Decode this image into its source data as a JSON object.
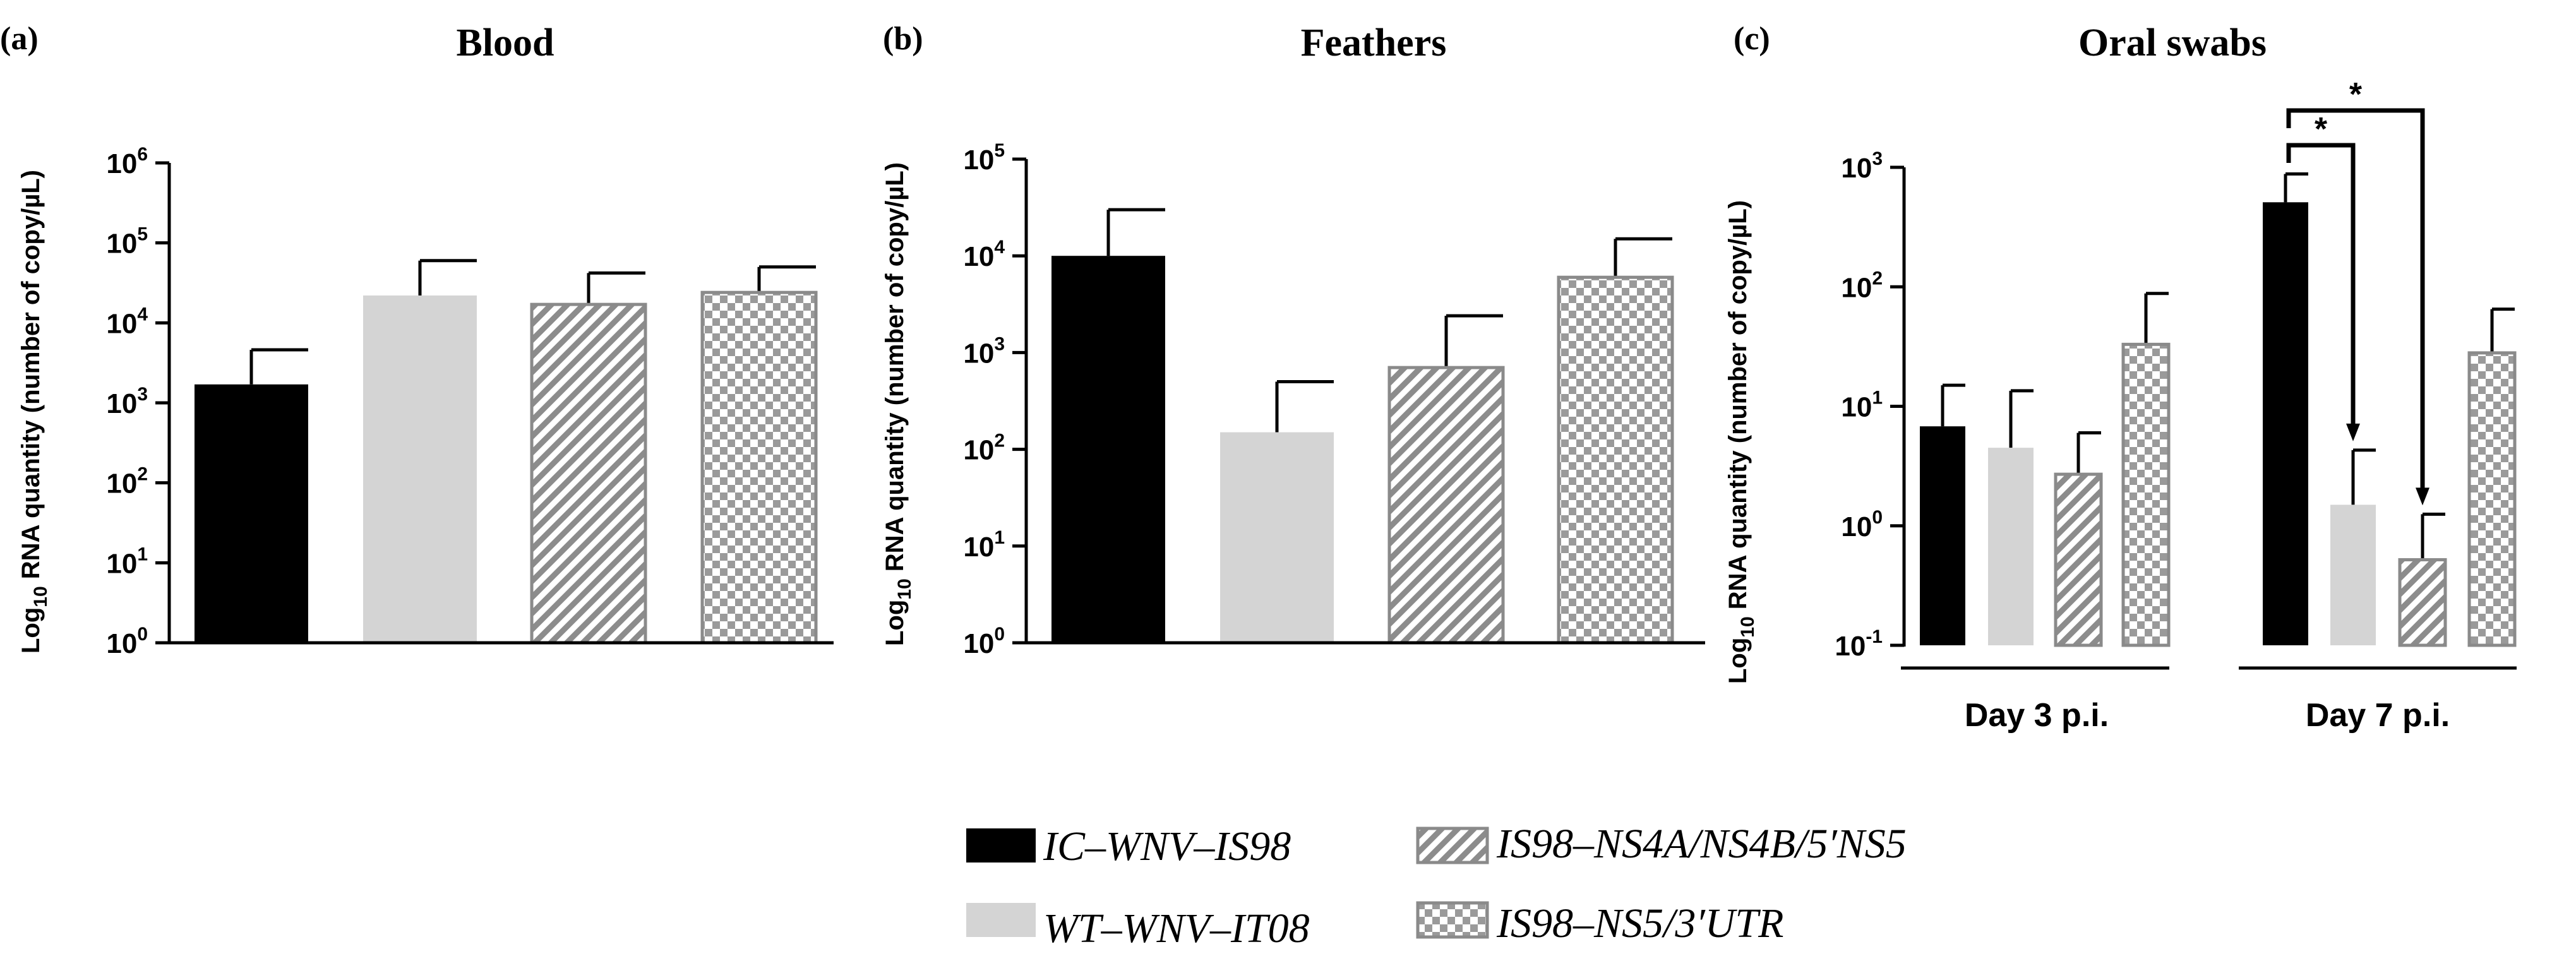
{
  "series_styles": [
    {
      "name": "IC–WNV–IS98",
      "fill": "solid",
      "color": "#000000",
      "stroke": "#000000"
    },
    {
      "name": "WT–WNV–IT08",
      "fill": "solid",
      "color": "#d4d4d4",
      "stroke": "#d4d4d4"
    },
    {
      "name": "IS98–NS4A/NS4B/5′NS5",
      "fill": "hatch",
      "color": "#9a9a9a",
      "stroke": "#8a8a8a"
    },
    {
      "name": "IS98–NS5/3′UTR",
      "fill": "checker",
      "color": "#9a9a9a",
      "stroke": "#8a8a8a"
    }
  ],
  "legend": {
    "items": [
      {
        "label": "IC–WNV–IS98",
        "series": 0
      },
      {
        "label": "WT–WNV–IT08",
        "series": 1
      },
      {
        "label": "IS98–NS4A/NS4B/5′NS5",
        "series": 2
      },
      {
        "label": "IS98–NS5/3′UTR",
        "series": 3
      }
    ]
  },
  "chart_data": [
    {
      "panel": "(a)",
      "type": "bar",
      "title": "Blood",
      "ylabel_main": "Log",
      "ylabel_sub": "10",
      "ylabel_rest": " RNA quantity (number of copy/µL)",
      "yscale": "log",
      "ylim_exp": [
        0,
        6
      ],
      "yticks": [
        "10^0",
        "10^1",
        "10^2",
        "10^3",
        "10^4",
        "10^5",
        "10^6"
      ],
      "groups": [
        {
          "label": "",
          "bars": [
            {
              "series": 0,
              "value": 1700,
              "error": 4600
            },
            {
              "series": 1,
              "value": 22000,
              "error": 60000
            },
            {
              "series": 2,
              "value": 17000,
              "error": 42000
            },
            {
              "series": 3,
              "value": 24000,
              "error": 50000
            }
          ]
        }
      ]
    },
    {
      "panel": "(b)",
      "type": "bar",
      "title": "Feathers",
      "ylabel_main": "Log",
      "ylabel_sub": "10",
      "ylabel_rest": " RNA quantity (number of copy/µL)",
      "yscale": "log",
      "ylim_exp": [
        0,
        5
      ],
      "yticks": [
        "10^0",
        "10^1",
        "10^2",
        "10^3",
        "10^4",
        "10^5"
      ],
      "groups": [
        {
          "label": "",
          "bars": [
            {
              "series": 0,
              "value": 10000,
              "error": 30000
            },
            {
              "series": 1,
              "value": 150,
              "error": 500
            },
            {
              "series": 2,
              "value": 700,
              "error": 2400
            },
            {
              "series": 3,
              "value": 6000,
              "error": 15000
            }
          ]
        }
      ]
    },
    {
      "panel": "(c)",
      "type": "bar",
      "title": "Oral swabs",
      "ylabel_main": "Log",
      "ylabel_sub": "10",
      "ylabel_rest": " RNA quantity (number of copy/µL)",
      "yscale": "log",
      "ylim_exp": [
        -1,
        3
      ],
      "yticks": [
        "10^-1",
        "10^0",
        "10^1",
        "10^2",
        "10^3"
      ],
      "groups": [
        {
          "label": "Day 3 p.i.",
          "bars": [
            {
              "series": 0,
              "value": 6.8,
              "error": 15
            },
            {
              "series": 1,
              "value": 4.5,
              "error": 13.5
            },
            {
              "series": 2,
              "value": 2.7,
              "error": 6
            },
            {
              "series": 3,
              "value": 33,
              "error": 88
            }
          ]
        },
        {
          "label": "Day 7 p.i.",
          "bars": [
            {
              "series": 0,
              "value": 510,
              "error": 880
            },
            {
              "series": 1,
              "value": 1.5,
              "error": 4.3
            },
            {
              "series": 2,
              "value": 0.52,
              "error": 1.25
            },
            {
              "series": 3,
              "value": 28,
              "error": 65
            }
          ]
        }
      ],
      "significance": [
        {
          "label": "*",
          "group": 1,
          "from_bar": 0,
          "to_bar": 1
        },
        {
          "label": "*",
          "group": 1,
          "from_bar": 0,
          "to_bar": 2
        }
      ]
    }
  ]
}
